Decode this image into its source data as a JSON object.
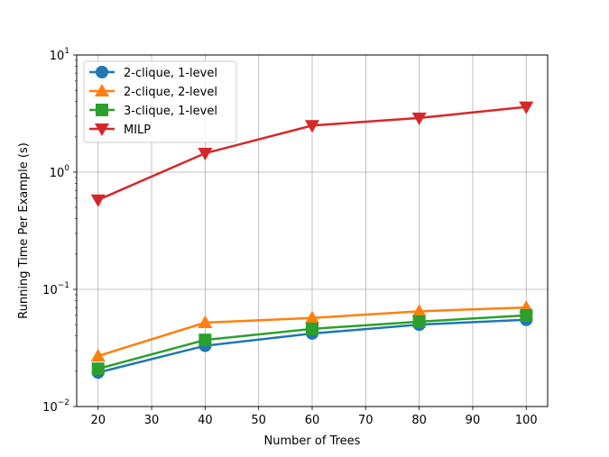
{
  "chart_data": {
    "type": "line",
    "xlabel": "Number of Trees",
    "ylabel": "Running Time Per Example (s)",
    "yscale": "log",
    "xlim": [
      16,
      104
    ],
    "ylim": [
      0.01,
      10
    ],
    "xticks": [
      20,
      30,
      40,
      50,
      60,
      70,
      80,
      90,
      100
    ],
    "yticks": [
      {
        "value": 0.01,
        "base": "10",
        "exp": "−2"
      },
      {
        "value": 0.1,
        "base": "10",
        "exp": "−1"
      },
      {
        "value": 1,
        "base": "10",
        "exp": "0"
      },
      {
        "value": 10,
        "base": "10",
        "exp": "1"
      }
    ],
    "grid": true,
    "legend_position": "top-left",
    "x": [
      20,
      40,
      60,
      80,
      100
    ],
    "series": [
      {
        "name": "2-clique, 1-level",
        "color": "#1f77b4",
        "marker": "circle",
        "values": [
          0.0195,
          0.033,
          0.042,
          0.05,
          0.055
        ]
      },
      {
        "name": "2-clique, 2-level",
        "color": "#ff7f0e",
        "marker": "triangle-up",
        "values": [
          0.027,
          0.052,
          0.057,
          0.065,
          0.07
        ]
      },
      {
        "name": "3-clique, 1-level",
        "color": "#2ca02c",
        "marker": "square",
        "values": [
          0.021,
          0.037,
          0.046,
          0.053,
          0.06
        ]
      },
      {
        "name": "MILP",
        "color": "#d62728",
        "marker": "triangle-down",
        "values": [
          0.58,
          1.45,
          2.5,
          2.9,
          3.6
        ]
      }
    ]
  }
}
